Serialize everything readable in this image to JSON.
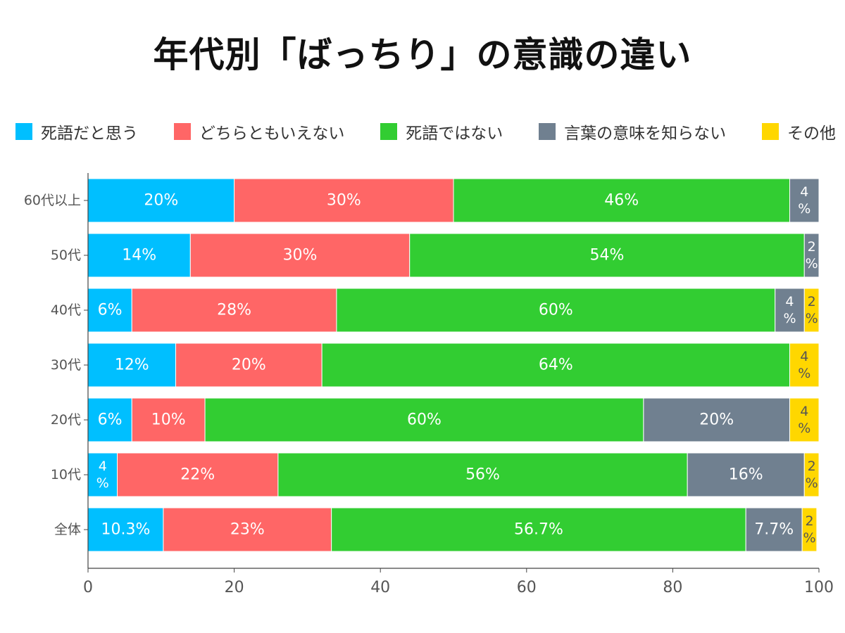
{
  "title": "年代別「ばっちり」の意識の違い",
  "chart_data": {
    "type": "bar",
    "orientation": "horizontal",
    "stacked": true,
    "title": "年代別「ばっちり」の意識の違い",
    "xlabel": "",
    "ylabel": "",
    "xlim": [
      0,
      100
    ],
    "xticks": [
      "0",
      "20",
      "40",
      "60",
      "80",
      "100"
    ],
    "grid": false,
    "legend_position": "top",
    "categories": [
      "60代以上",
      "50代",
      "40代",
      "30代",
      "20代",
      "10代",
      "全体"
    ],
    "series": [
      {
        "name": "死語だと思う",
        "color": "#00BFFF",
        "values": [
          20,
          14,
          6,
          12,
          6,
          4,
          10.3
        ],
        "labels": [
          "20%",
          "14%",
          "6%",
          "12%",
          "6%",
          "4\n%",
          "10.3%"
        ]
      },
      {
        "name": "どちらともいえない",
        "color": "#FF6666",
        "values": [
          30,
          30,
          28,
          20,
          10,
          22,
          23
        ],
        "labels": [
          "30%",
          "30%",
          "28%",
          "20%",
          "10%",
          "22%",
          "23%"
        ]
      },
      {
        "name": "死語ではない",
        "color": "#32CD32",
        "values": [
          46,
          54,
          60,
          64,
          60,
          56,
          56.7
        ],
        "labels": [
          "46%",
          "54%",
          "60%",
          "64%",
          "60%",
          "56%",
          "56.7%"
        ]
      },
      {
        "name": "言葉の意味を知らない",
        "color": "#708090",
        "values": [
          4,
          2,
          4,
          0,
          20,
          16,
          7.7
        ],
        "labels": [
          "4\n%",
          "2\n%",
          "4\n%",
          "",
          "20%",
          "16%",
          "7.7%"
        ]
      },
      {
        "name": "その他",
        "color": "#FFD700",
        "values": [
          0,
          0,
          2,
          4,
          4,
          2,
          2
        ],
        "labels": [
          "",
          "",
          "2\n%",
          "4\n%",
          "4\n%",
          "2\n%",
          "2\n%"
        ]
      }
    ]
  }
}
